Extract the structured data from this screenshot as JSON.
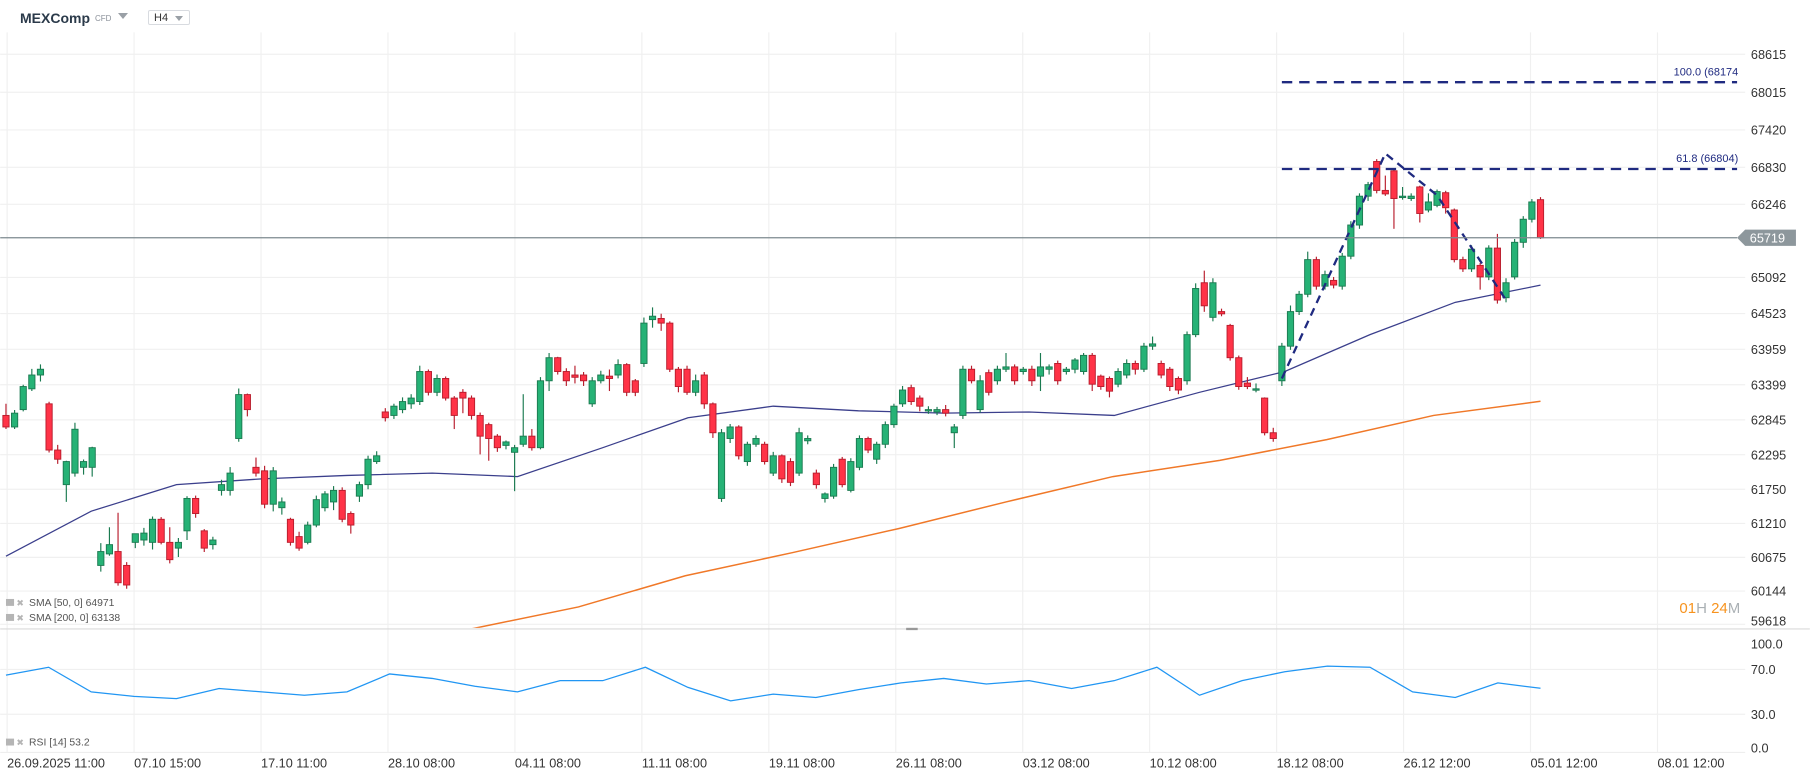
{
  "header": {
    "symbol": "MEXComp",
    "instrument_type": "CFD",
    "timeframe": "H4"
  },
  "colors": {
    "up": "#26b276",
    "up_border": "#1a7a50",
    "down": "#ff3347",
    "down_border": "#b81c2c",
    "sma50": "#3b3f8c",
    "sma200": "#f07828",
    "fib": "#1f2a80",
    "rsi": "#2196f3",
    "price_tag": "#8d979c",
    "countdown": "#f7931e"
  },
  "legend": {
    "sma50": "SMA [50, 0] 64971",
    "sma200": "SMA [200, 0] 63138",
    "rsi": "RSI [14] 53.2"
  },
  "countdown": {
    "hours": "01",
    "h": "H",
    "minutes": "24",
    "m": "M"
  },
  "chart_data": {
    "type": "candlestick",
    "price_axis_ticks": [
      "68615",
      "68015",
      "67420",
      "66830",
      "66246",
      "65092",
      "64523",
      "63959",
      "63399",
      "62845",
      "62295",
      "61750",
      "61210",
      "60675",
      "60144",
      "59618"
    ],
    "ylim": [
      59618,
      68615
    ],
    "last_price": "65719",
    "x_tick_labels": [
      "26.09.2025  11:00",
      "07.10  15:00",
      "17.10  11:00",
      "28.10  08:00",
      "04.11  08:00",
      "11.11  08:00",
      "19.11  08:00",
      "26.11  08:00",
      "03.12  08:00",
      "10.12  08:00",
      "18.12  08:00",
      "26.12  12:00",
      "05.01  12:00",
      "08.01  12:00"
    ],
    "candles_ohlc": [
      [
        62915,
        63100,
        62700,
        62733
      ],
      [
        62733,
        63000,
        62700,
        62951
      ],
      [
        63007,
        63400,
        62980,
        63371
      ],
      [
        63335,
        63650,
        63300,
        63553
      ],
      [
        63553,
        63720,
        63450,
        63644
      ],
      [
        63098,
        63130,
        62330,
        62369
      ],
      [
        62369,
        62450,
        62150,
        62224
      ],
      [
        61823,
        62200,
        61550,
        62187
      ],
      [
        62005,
        62800,
        61950,
        62697
      ],
      [
        62096,
        62220,
        61980,
        62187
      ],
      [
        62096,
        62420,
        61950,
        62406
      ],
      [
        60548,
        60900,
        60450,
        60767
      ],
      [
        60730,
        61150,
        60700,
        60876
      ],
      [
        60767,
        61380,
        60230,
        60275
      ],
      [
        60548,
        60600,
        60180,
        60239
      ],
      [
        60912,
        61050,
        60820,
        61048
      ],
      [
        60949,
        61140,
        60860,
        61058
      ],
      [
        60912,
        61320,
        60800,
        61276
      ],
      [
        61276,
        61310,
        60880,
        60912
      ],
      [
        60912,
        61150,
        60580,
        60639
      ],
      [
        60821,
        60980,
        60680,
        60912
      ],
      [
        61094,
        61640,
        60950,
        61605
      ],
      [
        61605,
        61650,
        61300,
        61367
      ],
      [
        61094,
        61120,
        60760,
        60821
      ],
      [
        60876,
        61000,
        60800,
        60949
      ],
      [
        61732,
        61900,
        61650,
        61823
      ],
      [
        61732,
        62100,
        61650,
        62005
      ],
      [
        62551,
        63340,
        62500,
        63244
      ],
      [
        63244,
        63260,
        62900,
        63007
      ],
      [
        62096,
        62250,
        61950,
        62005
      ],
      [
        62041,
        62120,
        61450,
        61514
      ],
      [
        61514,
        62100,
        61400,
        62041
      ],
      [
        61459,
        61620,
        61350,
        61550
      ],
      [
        61276,
        61300,
        60860,
        60912
      ],
      [
        61003,
        61080,
        60780,
        60821
      ],
      [
        60912,
        61240,
        60880,
        61185
      ],
      [
        61185,
        61650,
        61150,
        61586
      ],
      [
        61459,
        61720,
        61400,
        61677
      ],
      [
        61550,
        61800,
        61420,
        61732
      ],
      [
        61732,
        61780,
        61230,
        61276
      ],
      [
        61367,
        61400,
        61050,
        61185
      ],
      [
        61641,
        61870,
        61550,
        61823
      ],
      [
        61823,
        62280,
        61750,
        62224
      ],
      [
        62187,
        62350,
        62150,
        62278
      ],
      [
        62970,
        63030,
        62820,
        62879
      ],
      [
        62915,
        63100,
        62860,
        63061
      ],
      [
        63007,
        63200,
        62950,
        63134
      ],
      [
        63098,
        63250,
        63020,
        63189
      ],
      [
        63134,
        63700,
        63080,
        63608
      ],
      [
        63608,
        63640,
        63230,
        63280
      ],
      [
        63280,
        63560,
        63220,
        63498
      ],
      [
        63498,
        63530,
        63150,
        63189
      ],
      [
        63189,
        63220,
        62700,
        62915
      ],
      [
        63280,
        63330,
        62950,
        63189
      ],
      [
        63189,
        63230,
        62850,
        62915
      ],
      [
        62915,
        62960,
        62300,
        62588
      ],
      [
        62770,
        62800,
        62200,
        62551
      ],
      [
        62588,
        62620,
        62340,
        62406
      ],
      [
        62442,
        62520,
        62380,
        62497
      ],
      [
        62333,
        62450,
        61720,
        62406
      ],
      [
        62460,
        63250,
        62420,
        62588
      ],
      [
        62588,
        62700,
        62360,
        62406
      ],
      [
        62406,
        63520,
        62380,
        63462
      ],
      [
        63462,
        63900,
        63300,
        63826
      ],
      [
        63826,
        63840,
        63560,
        63608
      ],
      [
        63608,
        63660,
        63380,
        63462
      ],
      [
        63553,
        63700,
        63420,
        63517
      ],
      [
        63553,
        63600,
        63380,
        63462
      ],
      [
        63098,
        63520,
        63050,
        63462
      ],
      [
        63462,
        63620,
        63420,
        63553
      ],
      [
        63535,
        63640,
        63300,
        63498
      ],
      [
        63553,
        63800,
        63500,
        63717
      ],
      [
        63717,
        63740,
        63220,
        63280
      ],
      [
        63462,
        63490,
        63220,
        63280
      ],
      [
        63735,
        64460,
        63680,
        64372
      ],
      [
        64427,
        64620,
        64300,
        64481
      ],
      [
        64445,
        64520,
        64250,
        64372
      ],
      [
        64372,
        64400,
        63600,
        63644
      ],
      [
        63644,
        63680,
        63280,
        63371
      ],
      [
        63644,
        63700,
        63240,
        63280
      ],
      [
        63280,
        63560,
        63220,
        63462
      ],
      [
        63553,
        63600,
        63020,
        63098
      ],
      [
        63098,
        63120,
        62560,
        62642
      ],
      [
        61605,
        62700,
        61550,
        62642
      ],
      [
        62551,
        62780,
        62480,
        62733
      ],
      [
        62733,
        62760,
        62220,
        62278
      ],
      [
        62187,
        62500,
        62120,
        62460
      ],
      [
        62460,
        62600,
        62420,
        62551
      ],
      [
        62460,
        62500,
        62140,
        62187
      ],
      [
        62005,
        62340,
        61960,
        62278
      ],
      [
        62278,
        62300,
        61850,
        61914
      ],
      [
        62187,
        62240,
        61800,
        61859
      ],
      [
        62005,
        62720,
        61960,
        62642
      ],
      [
        62515,
        62600,
        62460,
        62551
      ],
      [
        62005,
        62060,
        61760,
        61823
      ],
      [
        61605,
        61700,
        61540,
        61677
      ],
      [
        61641,
        62150,
        61600,
        62096
      ],
      [
        62224,
        62260,
        61780,
        61823
      ],
      [
        61732,
        62240,
        61700,
        62187
      ],
      [
        62096,
        62600,
        62050,
        62551
      ],
      [
        62551,
        62580,
        62320,
        62369
      ],
      [
        62224,
        62500,
        62150,
        62460
      ],
      [
        62460,
        62820,
        62400,
        62770
      ],
      [
        62770,
        63100,
        62720,
        63061
      ],
      [
        63098,
        63380,
        63050,
        63316
      ],
      [
        63353,
        63400,
        63080,
        63134
      ],
      [
        63189,
        63230,
        62980,
        63061
      ],
      [
        62988,
        63060,
        62940,
        63007
      ],
      [
        62970,
        63050,
        62920,
        63007
      ],
      [
        63007,
        63080,
        62900,
        62951
      ],
      [
        62642,
        62780,
        62400,
        62733
      ],
      [
        62915,
        63700,
        62860,
        63644
      ],
      [
        63644,
        63700,
        63420,
        63462
      ],
      [
        63007,
        63550,
        62960,
        63462
      ],
      [
        63590,
        63640,
        63230,
        63280
      ],
      [
        63462,
        63700,
        63400,
        63644
      ],
      [
        63644,
        63900,
        63600,
        63681
      ],
      [
        63681,
        63720,
        63400,
        63462
      ],
      [
        63608,
        63680,
        63560,
        63644
      ],
      [
        63644,
        63700,
        63380,
        63462
      ],
      [
        63535,
        63900,
        63300,
        63681
      ],
      [
        63644,
        63720,
        63560,
        63681
      ],
      [
        63735,
        63780,
        63400,
        63462
      ],
      [
        63608,
        63680,
        63560,
        63644
      ],
      [
        63644,
        63820,
        63580,
        63790
      ],
      [
        63608,
        63900,
        63560,
        63863
      ],
      [
        63863,
        63900,
        63300,
        63408
      ],
      [
        63535,
        63560,
        63320,
        63371
      ],
      [
        63498,
        63530,
        63200,
        63298
      ],
      [
        63408,
        63660,
        63360,
        63608
      ],
      [
        63553,
        63800,
        63500,
        63735
      ],
      [
        63735,
        63780,
        63560,
        63644
      ],
      [
        63644,
        64060,
        63600,
        64008
      ],
      [
        64008,
        64160,
        63950,
        64044
      ],
      [
        63735,
        63780,
        63500,
        63553
      ],
      [
        63644,
        63680,
        63300,
        63371
      ],
      [
        63498,
        63530,
        63250,
        63316
      ],
      [
        63462,
        64240,
        63400,
        64190
      ],
      [
        64190,
        65000,
        64150,
        64918
      ],
      [
        65009,
        65200,
        64550,
        64645
      ],
      [
        64463,
        65080,
        64400,
        65009
      ],
      [
        64554,
        64600,
        64480,
        64518
      ],
      [
        64336,
        64360,
        63780,
        63826
      ],
      [
        63826,
        63860,
        63320,
        63371
      ],
      [
        63426,
        63520,
        63330,
        63371
      ],
      [
        63316,
        63420,
        63280,
        63335
      ],
      [
        63189,
        63200,
        62600,
        62642
      ],
      [
        62642,
        62720,
        62500,
        62551
      ],
      [
        63462,
        64060,
        63380,
        64008
      ],
      [
        64008,
        64650,
        63950,
        64554
      ],
      [
        64554,
        64880,
        64500,
        64827
      ],
      [
        64827,
        65500,
        64780,
        65374
      ],
      [
        65374,
        65420,
        64900,
        64955
      ],
      [
        64955,
        65200,
        64900,
        65137
      ],
      [
        65046,
        65100,
        64920,
        64973
      ],
      [
        64955,
        65480,
        64900,
        65428
      ],
      [
        65428,
        65980,
        65380,
        65920
      ],
      [
        65920,
        66420,
        65860,
        66375
      ],
      [
        66375,
        66600,
        66300,
        66557
      ],
      [
        66922,
        66960,
        66420,
        66466
      ],
      [
        66466,
        66700,
        66380,
        66411
      ],
      [
        66776,
        66800,
        65860,
        66338
      ],
      [
        66357,
        66520,
        66320,
        66375
      ],
      [
        66338,
        66420,
        66300,
        66375
      ],
      [
        66521,
        66540,
        65960,
        66102
      ],
      [
        66157,
        66420,
        66120,
        66284
      ],
      [
        66230,
        66480,
        66200,
        66448
      ],
      [
        66430,
        66460,
        66100,
        66193
      ],
      [
        66157,
        66180,
        65330,
        65374
      ],
      [
        65374,
        65420,
        65180,
        65228
      ],
      [
        65228,
        65600,
        65180,
        65538
      ],
      [
        65283,
        65320,
        64900,
        65101
      ],
      [
        65101,
        65600,
        65050,
        65556
      ],
      [
        65556,
        65780,
        64680,
        64736
      ],
      [
        64773,
        65080,
        64700,
        65009
      ],
      [
        65101,
        65700,
        65060,
        65647
      ],
      [
        65647,
        66060,
        65560,
        66011
      ],
      [
        66011,
        66330,
        65960,
        66284
      ],
      [
        66320,
        66360,
        65700,
        65719
      ]
    ],
    "sma50": [
      60694,
      61404,
      61823,
      61914,
      61968,
      62005,
      61950,
      62406,
      62879,
      63061,
      62988,
      62951,
      62970,
      62915,
      63280,
      63608,
      64190,
      64700,
      64971
    ],
    "sma200": [
      59547,
      59893,
      60385,
      60749,
      61131,
      61550,
      61950,
      62206,
      62533,
      62915,
      63138
    ],
    "fibonacci": {
      "levels": [
        {
          "label": "100.0 (68174",
          "value": 68174
        },
        {
          "label": "61.8 (66804)",
          "value": 66804
        }
      ],
      "zigzag_prices": [
        63498,
        67049,
        66390,
        64736
      ]
    },
    "rsi": {
      "ticks": [
        "100.0",
        "70.0",
        "30.0",
        "0.0"
      ],
      "ylim": [
        0,
        100
      ],
      "values": [
        65,
        72,
        50,
        46,
        44,
        53,
        50,
        47,
        50,
        66,
        62,
        55,
        50,
        60,
        60,
        72,
        54,
        42,
        48,
        45,
        52,
        58,
        62,
        57,
        60,
        53,
        60,
        72,
        47,
        60,
        68,
        73,
        72,
        50,
        45,
        58,
        53.2
      ]
    }
  }
}
